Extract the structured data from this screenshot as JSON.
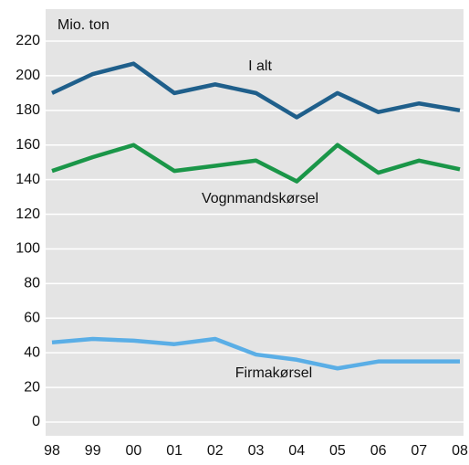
{
  "chart_data": {
    "type": "line",
    "y_label": "Mio. ton",
    "categories": [
      "98",
      "99",
      "00",
      "01",
      "02",
      "03",
      "04",
      "05",
      "06",
      "07",
      "08"
    ],
    "series": [
      {
        "name": "I alt",
        "color": "#1f5f8b",
        "values": [
          190,
          201,
          207,
          190,
          195,
          190,
          176,
          190,
          179,
          184,
          180
        ]
      },
      {
        "name": "Vognmandskørsel",
        "color": "#1a9648",
        "values": [
          145,
          153,
          160,
          145,
          148,
          151,
          139,
          160,
          144,
          151,
          146
        ]
      },
      {
        "name": "Firmakørsel",
        "color": "#5aaee6",
        "values": [
          46,
          48,
          47,
          45,
          48,
          39,
          36,
          31,
          35,
          35,
          35
        ]
      }
    ],
    "ylim": [
      0,
      220
    ],
    "yticks": [
      0,
      20,
      40,
      60,
      80,
      100,
      120,
      140,
      160,
      180,
      200,
      220
    ],
    "grid": true
  }
}
